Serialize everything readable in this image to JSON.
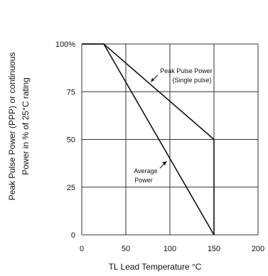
{
  "chart_data": {
    "type": "line",
    "xlabel": "TL Lead Temperature °C",
    "ylabel_line1": "Peak Pulse Power (PPP) or continuous",
    "ylabel_line2": "Power in % of 25°C rating",
    "xlim": [
      0,
      200
    ],
    "ylim": [
      0,
      100
    ],
    "x_ticks": [
      "0",
      "50",
      "100",
      "150",
      "200"
    ],
    "y_ticks": [
      "0",
      "25",
      "50",
      "75",
      "100%"
    ],
    "x_tick_values": [
      0,
      50,
      100,
      150,
      200
    ],
    "y_tick_values": [
      0,
      25,
      50,
      75,
      100
    ],
    "grid": true,
    "series": [
      {
        "name": "Peak Pulse Power (Single pulse)",
        "x": [
          0,
          25,
          150,
          150
        ],
        "y": [
          100,
          100,
          50,
          0
        ]
      },
      {
        "name": "Average Power",
        "x": [
          0,
          25,
          150
        ],
        "y": [
          100,
          100,
          0
        ]
      }
    ],
    "annotations": [
      {
        "line1": "Peak Pulse Power",
        "line2": "(Single pulse)"
      },
      {
        "line1": "Average",
        "line2": "Power"
      }
    ]
  }
}
